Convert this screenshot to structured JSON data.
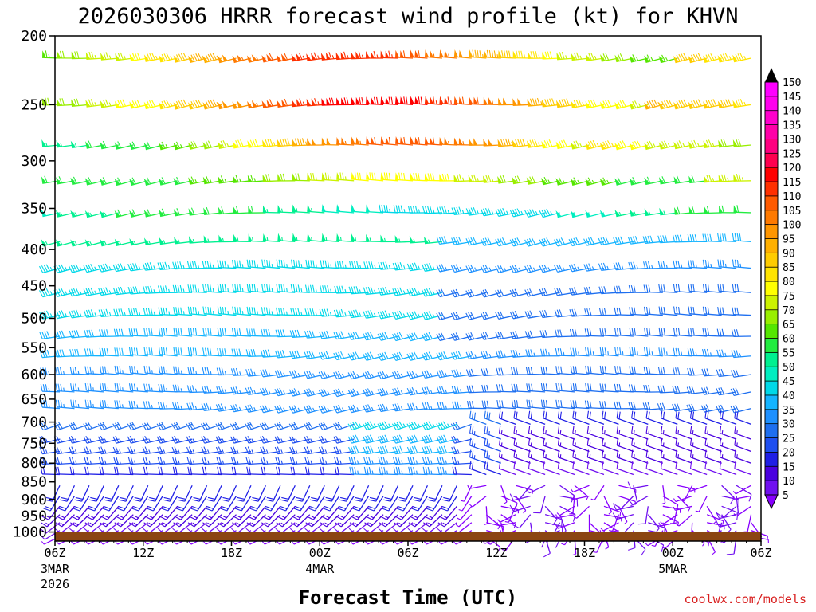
{
  "chart_data": {
    "type": "wind-barb-time-height",
    "title": "2026030306 HRRR forecast wind profile (kt) for KHVN",
    "xlabel": "Forecast Time (UTC)",
    "credit": "coolwx.com/models",
    "x_range_hours": [
      0,
      48
    ],
    "y_range_hpa": [
      200,
      1030
    ],
    "y_ticks": [
      200,
      250,
      300,
      350,
      400,
      450,
      500,
      550,
      600,
      650,
      700,
      750,
      800,
      850,
      900,
      950,
      1000
    ],
    "y_tick_labels": [
      "200",
      "250",
      "300",
      "350",
      "400",
      "450",
      "500",
      "550",
      "600",
      "650",
      "700",
      "750",
      "800",
      "850",
      "900",
      "950",
      "1000"
    ],
    "x_ticks": [
      {
        "hour": 0,
        "label": "06Z",
        "date": "3MAR",
        "year": "2026"
      },
      {
        "hour": 6,
        "label": "12Z"
      },
      {
        "hour": 12,
        "label": "18Z"
      },
      {
        "hour": 18,
        "label": "00Z",
        "date": "4MAR"
      },
      {
        "hour": 24,
        "label": "06Z"
      },
      {
        "hour": 30,
        "label": "12Z"
      },
      {
        "hour": 36,
        "label": "18Z"
      },
      {
        "hour": 42,
        "label": "00Z",
        "date": "5MAR"
      },
      {
        "hour": 48,
        "label": "06Z"
      }
    ],
    "colorbar": {
      "levels": [
        5,
        10,
        15,
        20,
        25,
        30,
        35,
        40,
        45,
        50,
        55,
        60,
        65,
        70,
        75,
        80,
        85,
        90,
        95,
        100,
        105,
        110,
        115,
        120,
        125,
        130,
        135,
        140,
        145,
        150
      ],
      "labels": [
        "5",
        "10",
        "15",
        "20",
        "25",
        "30",
        "35",
        "40",
        "45",
        "50",
        "55",
        "60",
        "65",
        "70",
        "75",
        "80",
        "85",
        "90",
        "95",
        "100",
        "105",
        "110",
        "115",
        "120",
        "125",
        "130",
        "135",
        "140",
        "145",
        "150"
      ],
      "colors": [
        "#8800ff",
        "#7010f0",
        "#4a00e0",
        "#1f1fe6",
        "#1f4ff0",
        "#1e6ff0",
        "#1e90ff",
        "#14b4ff",
        "#00d8e8",
        "#00eec0",
        "#00f090",
        "#22ec40",
        "#55e600",
        "#99ee00",
        "#ccf200",
        "#ffff00",
        "#ffe400",
        "#ffcc00",
        "#ffb000",
        "#ff9600",
        "#ff7a00",
        "#ff5a00",
        "#ff3000",
        "#ff0000",
        "#ff0050",
        "#ff0080",
        "#ff00a8",
        "#ff00cc",
        "#ff00ee",
        "#ff00ff"
      ]
    },
    "levels_hpa": [
      215,
      250,
      285,
      320,
      355,
      390,
      425,
      460,
      495,
      530,
      565,
      600,
      635,
      670,
      705,
      740,
      770,
      800,
      830,
      860,
      890,
      920,
      945,
      970,
      995,
      1015
    ],
    "times_hours_step": 1,
    "wind_profile_description": "Westerly winds at all levels. Upper troposphere (200-300 hPa) 60-125 kt, strongest around 250 hPa near 00Z-06Z 4MAR. Mid levels 25-55 kt. Boundary layer backs to southerly/variable and weakens to 5-15 kt after 12Z 4MAR.",
    "ground_color": "#8b4513"
  }
}
